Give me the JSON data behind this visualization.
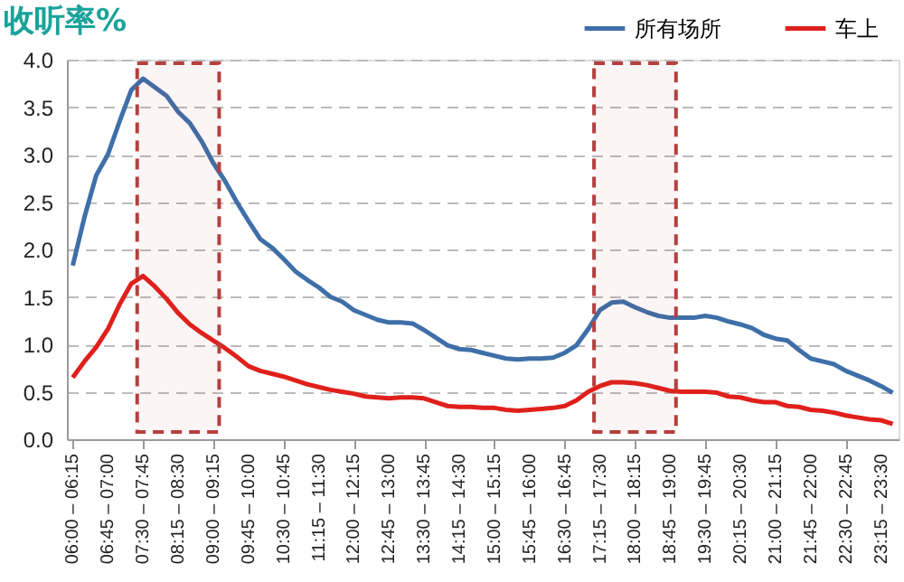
{
  "chart_data": {
    "type": "line",
    "title": "收听率%",
    "categories": [
      "06:00 – 06:15",
      null,
      null,
      "06:45 – 07:00",
      null,
      null,
      "07:30 – 07:45",
      null,
      null,
      "08:15 – 08:30",
      null,
      null,
      "09:00 – 09:15",
      null,
      null,
      "09:45 – 10:00",
      null,
      null,
      "10:30 – 10:45",
      null,
      null,
      "11:15 – 11:30",
      null,
      null,
      "12:00 – 12:15",
      null,
      null,
      "12:45 – 13:00",
      null,
      null,
      "13:30 – 13:45",
      null,
      null,
      "14:15 – 14:30",
      null,
      null,
      "15:00 – 15:15",
      null,
      null,
      "15:45 – 16:00",
      null,
      null,
      "16:30 – 16:45",
      null,
      null,
      "17:15 – 17:30",
      null,
      null,
      "18:00 – 18:15",
      null,
      null,
      "18:45 – 19:00",
      null,
      null,
      "19:30 – 19:45",
      null,
      null,
      "20:15 – 20:30",
      null,
      null,
      "21:00 – 21:15",
      null,
      null,
      "21:45 – 22:00",
      null,
      null,
      "22:30 – 22:45",
      null,
      null,
      "23:15 – 23:30",
      null
    ],
    "series": [
      {
        "name": "所有场所",
        "color": "#3f6fa8",
        "values": [
          1.83,
          2.34,
          2.78,
          3.0,
          3.35,
          3.68,
          3.8,
          3.71,
          3.62,
          3.45,
          3.33,
          3.14,
          2.91,
          2.72,
          2.5,
          2.3,
          2.11,
          2.02,
          1.9,
          1.77,
          1.68,
          1.6,
          1.5,
          1.45,
          1.36,
          1.31,
          1.26,
          1.23,
          1.23,
          1.22,
          1.15,
          1.07,
          0.99,
          0.95,
          0.94,
          0.91,
          0.88,
          0.85,
          0.84,
          0.85,
          0.85,
          0.86,
          0.91,
          0.99,
          1.16,
          1.36,
          1.44,
          1.45,
          1.39,
          1.34,
          1.3,
          1.28,
          1.28,
          1.28,
          1.3,
          1.28,
          1.24,
          1.21,
          1.17,
          1.1,
          1.06,
          1.04,
          0.94,
          0.85,
          0.82,
          0.79,
          0.72,
          0.67,
          0.62,
          0.56,
          0.49
        ]
      },
      {
        "name": "车上",
        "color": "#e0201b",
        "values": [
          0.65,
          0.82,
          0.97,
          1.16,
          1.42,
          1.64,
          1.72,
          1.61,
          1.48,
          1.33,
          1.21,
          1.12,
          1.04,
          0.96,
          0.87,
          0.77,
          0.72,
          0.69,
          0.66,
          0.62,
          0.58,
          0.55,
          0.52,
          0.5,
          0.48,
          0.45,
          0.44,
          0.43,
          0.44,
          0.44,
          0.43,
          0.39,
          0.35,
          0.34,
          0.34,
          0.33,
          0.33,
          0.31,
          0.3,
          0.31,
          0.32,
          0.33,
          0.35,
          0.41,
          0.5,
          0.56,
          0.6,
          0.6,
          0.59,
          0.57,
          0.54,
          0.51,
          0.5,
          0.5,
          0.5,
          0.49,
          0.45,
          0.44,
          0.41,
          0.39,
          0.39,
          0.35,
          0.34,
          0.31,
          0.3,
          0.28,
          0.25,
          0.23,
          0.21,
          0.2,
          0.16
        ]
      }
    ],
    "ylim": [
      0,
      4
    ],
    "yticks": [
      {
        "value": 0,
        "label": "0.0"
      },
      {
        "value": 0.5,
        "label": "0.5"
      },
      {
        "value": 1,
        "label": "1.0"
      },
      {
        "value": 1.5,
        "label": "1.5"
      },
      {
        "value": 2,
        "label": "2.0"
      },
      {
        "value": 2.5,
        "label": "2.5"
      },
      {
        "value": 3,
        "label": "3.0"
      },
      {
        "value": 3.5,
        "label": "3.5"
      },
      {
        "value": 4,
        "label": "4.0"
      }
    ],
    "bands": [
      {
        "axis": "x",
        "from": "07:30 – 07:45",
        "to": "09:00 – 09:15",
        "color": "#b5403f"
      },
      {
        "axis": "x",
        "from": "17:15 – 17:30",
        "to": "18:45 – 19:00",
        "color": "#b5403f"
      }
    ],
    "grid": "y",
    "legend": "top right",
    "marker": "none",
    "line_style": "solid"
  }
}
